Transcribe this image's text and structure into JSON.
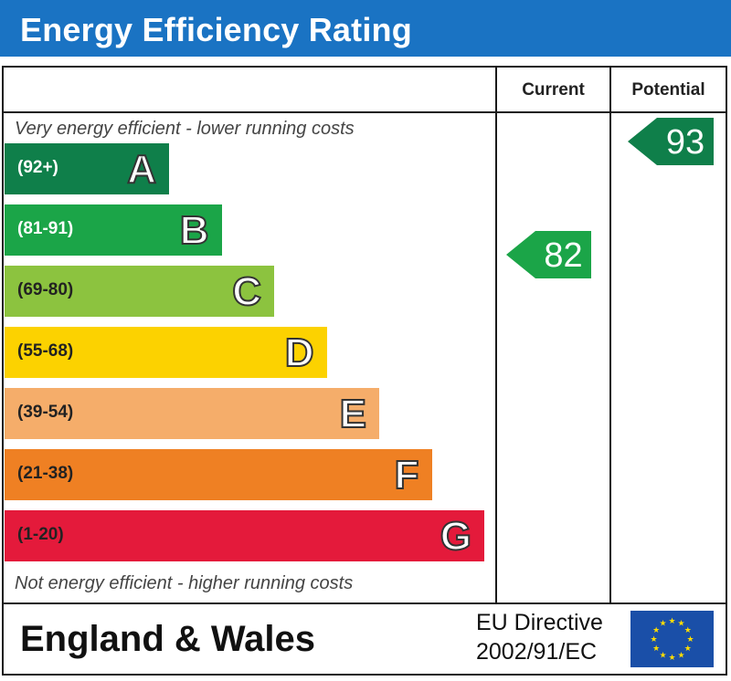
{
  "header": {
    "title": "Energy Efficiency Rating"
  },
  "columns": {
    "current": "Current",
    "potential": "Potential"
  },
  "captions": {
    "top": "Very energy efficient - lower running costs",
    "bottom": "Not energy efficient - higher running costs"
  },
  "footer": {
    "region": "England & Wales",
    "directive_line1": "EU Directive",
    "directive_line2": "2002/91/EC"
  },
  "chart_data": {
    "type": "bar",
    "categories": [
      "A",
      "B",
      "C",
      "D",
      "E",
      "F",
      "G"
    ],
    "ranges": [
      "(92+)",
      "(81-91)",
      "(69-80)",
      "(55-68)",
      "(39-54)",
      "(21-38)",
      "(1-20)"
    ],
    "colors": [
      "#0f7f4a",
      "#1ba548",
      "#8cc33f",
      "#fcd200",
      "#f5ad6a",
      "#ef8023",
      "#e41a3b"
    ],
    "range_text_colors": [
      "#ffffff",
      "#ffffff",
      "#222222",
      "#222222",
      "#222222",
      "#222222",
      "#222222"
    ],
    "current": {
      "value": 82,
      "band": "B",
      "color": "#1ba548"
    },
    "potential": {
      "value": 93,
      "band": "A",
      "color": "#0f7f4a"
    }
  },
  "eu_flag_colors": {
    "background": "#1a4fa8",
    "stars": "#ffdd00"
  }
}
